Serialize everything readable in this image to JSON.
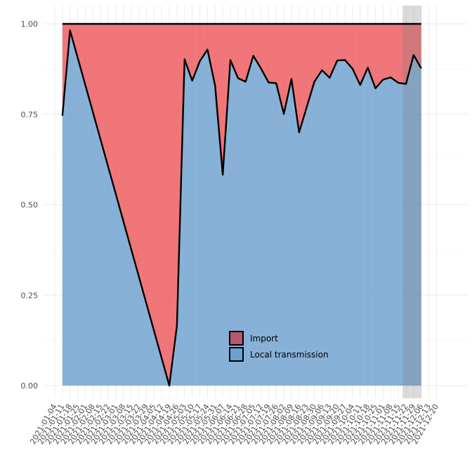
{
  "chart_data": {
    "type": "area",
    "title": "",
    "xlabel": "",
    "ylabel": "",
    "ylim": [
      0,
      1
    ],
    "y_ticks": [
      "0.00",
      "0.25",
      "0.50",
      "0.75",
      "1.00"
    ],
    "x_ticks": [
      "2021-01-04",
      "2021-01-11",
      "2021-01-18",
      "2021-01-25",
      "2021-02-01",
      "2021-02-08",
      "2021-02-15",
      "2021-02-22",
      "2021-03-01",
      "2021-03-08",
      "2021-03-15",
      "2021-03-22",
      "2021-03-29",
      "2021-04-05",
      "2021-04-12",
      "2021-04-19",
      "2021-04-26",
      "2021-05-03",
      "2021-05-10",
      "2021-05-17",
      "2021-05-24",
      "2021-05-31",
      "2021-06-07",
      "2021-06-14",
      "2021-06-21",
      "2021-06-28",
      "2021-07-05",
      "2021-07-12",
      "2021-07-19",
      "2021-07-26",
      "2021-08-02",
      "2021-08-09",
      "2021-08-16",
      "2021-08-23",
      "2021-08-30",
      "2021-09-06",
      "2021-09-13",
      "2021-09-20",
      "2021-09-27",
      "2021-10-04",
      "2021-10-11",
      "2021-10-18",
      "2021-10-25",
      "2021-11-01",
      "2021-11-08",
      "2021-11-15",
      "2021-11-22",
      "2021-11-29",
      "2021-12-06",
      "2021-12-13",
      "2021-12-20"
    ],
    "x": [
      "2021-01-11",
      "2021-01-18",
      "2021-04-19",
      "2021-04-26",
      "2021-05-03",
      "2021-05-10",
      "2021-05-17",
      "2021-05-24",
      "2021-05-31",
      "2021-06-07",
      "2021-06-14",
      "2021-06-21",
      "2021-06-28",
      "2021-07-05",
      "2021-07-12",
      "2021-07-19",
      "2021-07-26",
      "2021-08-02",
      "2021-08-09",
      "2021-08-16",
      "2021-08-23",
      "2021-08-30",
      "2021-09-06",
      "2021-09-13",
      "2021-09-20",
      "2021-09-27",
      "2021-10-04",
      "2021-10-11",
      "2021-10-18",
      "2021-10-25",
      "2021-11-01",
      "2021-11-08",
      "2021-11-15",
      "2021-11-22",
      "2021-11-29",
      "2021-12-06"
    ],
    "series": [
      {
        "name": "Local transmission",
        "color": "#6a9ecd",
        "values": [
          0.746,
          0.982,
          0.0,
          0.166,
          0.902,
          0.843,
          0.897,
          0.929,
          0.829,
          0.583,
          0.9,
          0.85,
          0.84,
          0.912,
          0.877,
          0.838,
          0.836,
          0.751,
          0.848,
          0.7,
          0.77,
          0.84,
          0.872,
          0.851,
          0.899,
          0.9,
          0.876,
          0.831,
          0.879,
          0.822,
          0.846,
          0.852,
          0.837,
          0.834,
          0.914,
          0.877
        ]
      },
      {
        "name": "Import",
        "color": "#ec5459",
        "values": [
          0.254,
          0.018,
          1.0,
          0.834,
          0.098,
          0.157,
          0.103,
          0.071,
          0.171,
          0.417,
          0.1,
          0.15,
          0.16,
          0.088,
          0.123,
          0.162,
          0.164,
          0.249,
          0.152,
          0.3,
          0.23,
          0.16,
          0.128,
          0.149,
          0.101,
          0.1,
          0.124,
          0.169,
          0.121,
          0.178,
          0.154,
          0.148,
          0.163,
          0.166,
          0.086,
          0.123
        ]
      }
    ],
    "shaded_range": [
      "2021-11-22",
      "2021-12-06"
    ],
    "legend": {
      "placement": "inside-bottom-center"
    },
    "grid": true
  }
}
